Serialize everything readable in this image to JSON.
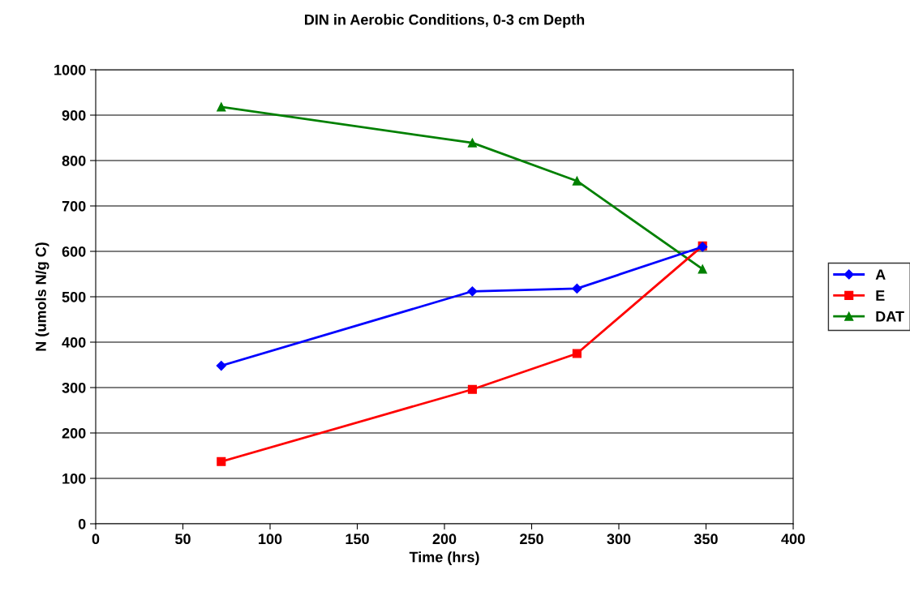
{
  "chart_data": {
    "type": "line",
    "title": "DIN in Aerobic Conditions, 0-3 cm Depth",
    "xlabel": "Time (hrs)",
    "ylabel": "N (umols N/g C)",
    "x": [
      72,
      216,
      276,
      348
    ],
    "series": [
      {
        "name": "A",
        "color": "#0000ff",
        "marker": "diamond",
        "values": [
          348,
          512,
          518,
          610
        ]
      },
      {
        "name": "E",
        "color": "#ff0000",
        "marker": "square",
        "values": [
          137,
          296,
          375,
          612
        ]
      },
      {
        "name": "DAT",
        "color": "#008000",
        "marker": "triangle",
        "values": [
          918,
          839,
          755,
          561
        ]
      }
    ],
    "xlim": [
      0,
      400
    ],
    "xticks": [
      0,
      50,
      100,
      150,
      200,
      250,
      300,
      350,
      400
    ],
    "ylim": [
      0,
      1000
    ],
    "yticks": [
      0,
      100,
      200,
      300,
      400,
      500,
      600,
      700,
      800,
      900,
      1000
    ],
    "grid": "y",
    "legend": "right",
    "line_style": "solid"
  }
}
